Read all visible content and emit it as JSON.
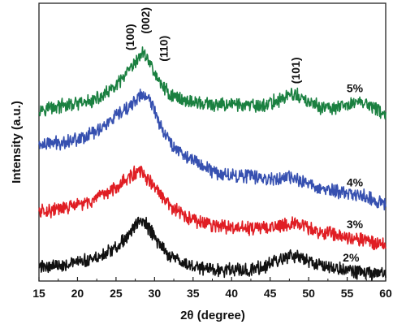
{
  "chart_data": {
    "type": "line",
    "xlabel": "2θ (degree)",
    "ylabel": "Intensity (a.u.)",
    "xlim": [
      15,
      60
    ],
    "ylim": [
      0,
      100
    ],
    "xticks": [
      15,
      20,
      25,
      30,
      35,
      40,
      45,
      50,
      55,
      60
    ],
    "grid": false,
    "series": [
      {
        "name": "5%",
        "color": "#1a8040",
        "x": [
          15,
          18,
          21,
          23,
          25,
          26.5,
          27.5,
          28.3,
          29,
          29.8,
          30.5,
          31.2,
          32,
          34,
          36,
          38,
          40,
          42,
          44,
          46,
          47.5,
          48.3,
          49.5,
          51,
          53,
          55,
          56.5,
          58,
          60
        ],
        "y": [
          62,
          63,
          64,
          66,
          70,
          75,
          78,
          82,
          81,
          76,
          72,
          70,
          67,
          65,
          64,
          63,
          64,
          63,
          63,
          65,
          67,
          67,
          65,
          63,
          62,
          63,
          65,
          63,
          60
        ]
      },
      {
        "name": "4%",
        "color": "#3650b0",
        "x": [
          15,
          18,
          21,
          23,
          25,
          26.5,
          27.5,
          28.3,
          29,
          29.8,
          30.5,
          31.2,
          32,
          34,
          36,
          38,
          40,
          42,
          44,
          46,
          48,
          50,
          52,
          54,
          56.5,
          58,
          60
        ],
        "y": [
          49,
          50,
          52,
          55,
          59,
          62,
          65,
          67,
          66,
          63,
          58,
          54,
          50,
          45,
          42,
          39,
          38,
          38,
          37,
          37,
          37,
          35,
          33,
          32,
          31,
          30,
          27
        ]
      },
      {
        "name": "3%",
        "color": "#e01e24",
        "x": [
          15,
          18,
          21,
          23,
          25,
          26.5,
          27.5,
          28.3,
          29,
          30,
          31,
          32,
          34,
          36,
          38,
          40,
          42,
          44,
          46,
          47.5,
          49,
          51,
          53,
          55,
          57,
          60
        ],
        "y": [
          25,
          26,
          28,
          30,
          34,
          37,
          39,
          39,
          37,
          34,
          30,
          27,
          23,
          21,
          20,
          19,
          19,
          19,
          20,
          21,
          20,
          18,
          17,
          16,
          15,
          13
        ]
      },
      {
        "name": "2%",
        "color": "#111111",
        "x": [
          15,
          18,
          21,
          23,
          25,
          26.5,
          27.5,
          28.3,
          29,
          30,
          31,
          32,
          34,
          36,
          38,
          40,
          42,
          44,
          46,
          47.5,
          49,
          51,
          53,
          55,
          57,
          60
        ],
        "y": [
          5,
          6,
          7,
          9,
          12,
          16,
          20,
          22,
          20,
          16,
          12,
          9,
          6,
          5,
          4,
          4,
          4,
          5,
          7,
          9,
          8,
          6,
          5,
          4,
          3,
          2
        ]
      }
    ],
    "annotations": [
      {
        "text": "(100)",
        "x": 26.8,
        "y": 83
      },
      {
        "text": "(002)",
        "x": 28.8,
        "y": 89
      },
      {
        "text": "(110)",
        "x": 31.2,
        "y": 79
      },
      {
        "text": "(101)",
        "x": 48.3,
        "y": 71
      }
    ],
    "series_labels": [
      {
        "text": "5%",
        "x": 56,
        "y": 68
      },
      {
        "text": "4%",
        "x": 56,
        "y": 34
      },
      {
        "text": "3%",
        "x": 56,
        "y": 19
      },
      {
        "text": "2%",
        "x": 55.5,
        "y": 7
      }
    ]
  }
}
